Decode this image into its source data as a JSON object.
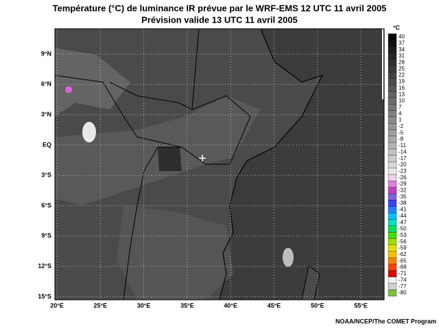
{
  "header": {
    "title": "Température (°C) de luminance IR prévue par le WRF-EMS 12 UTC 11 avril 2005",
    "subtitle": "Prévision valide 13 UTC 11 avril 2005"
  },
  "map": {
    "latitude_labels": [
      "9°N",
      "6°N",
      "3°N",
      "EQ",
      "3°S",
      "6°S",
      "9°S",
      "12°S",
      "15°S"
    ],
    "longitude_labels": [
      "20°E",
      "25°E",
      "30°E",
      "35°E",
      "40°E",
      "45°E",
      "50°E",
      "55°E"
    ]
  },
  "colorbar": {
    "unit": "°C",
    "labels": [
      40,
      37,
      34,
      31,
      28,
      25,
      22,
      19,
      16,
      13,
      10,
      7,
      4,
      1,
      -2,
      -5,
      -8,
      -11,
      -14,
      -17,
      -20,
      -23,
      -26,
      -29,
      -32,
      -35,
      -38,
      -41,
      -44,
      -47,
      -50,
      -53,
      -56,
      -59,
      -62,
      -65,
      -68,
      -71,
      -74,
      -77,
      -80
    ]
  },
  "footer": {
    "credit": "NOAA/NCEP/The COMET Program"
  }
}
